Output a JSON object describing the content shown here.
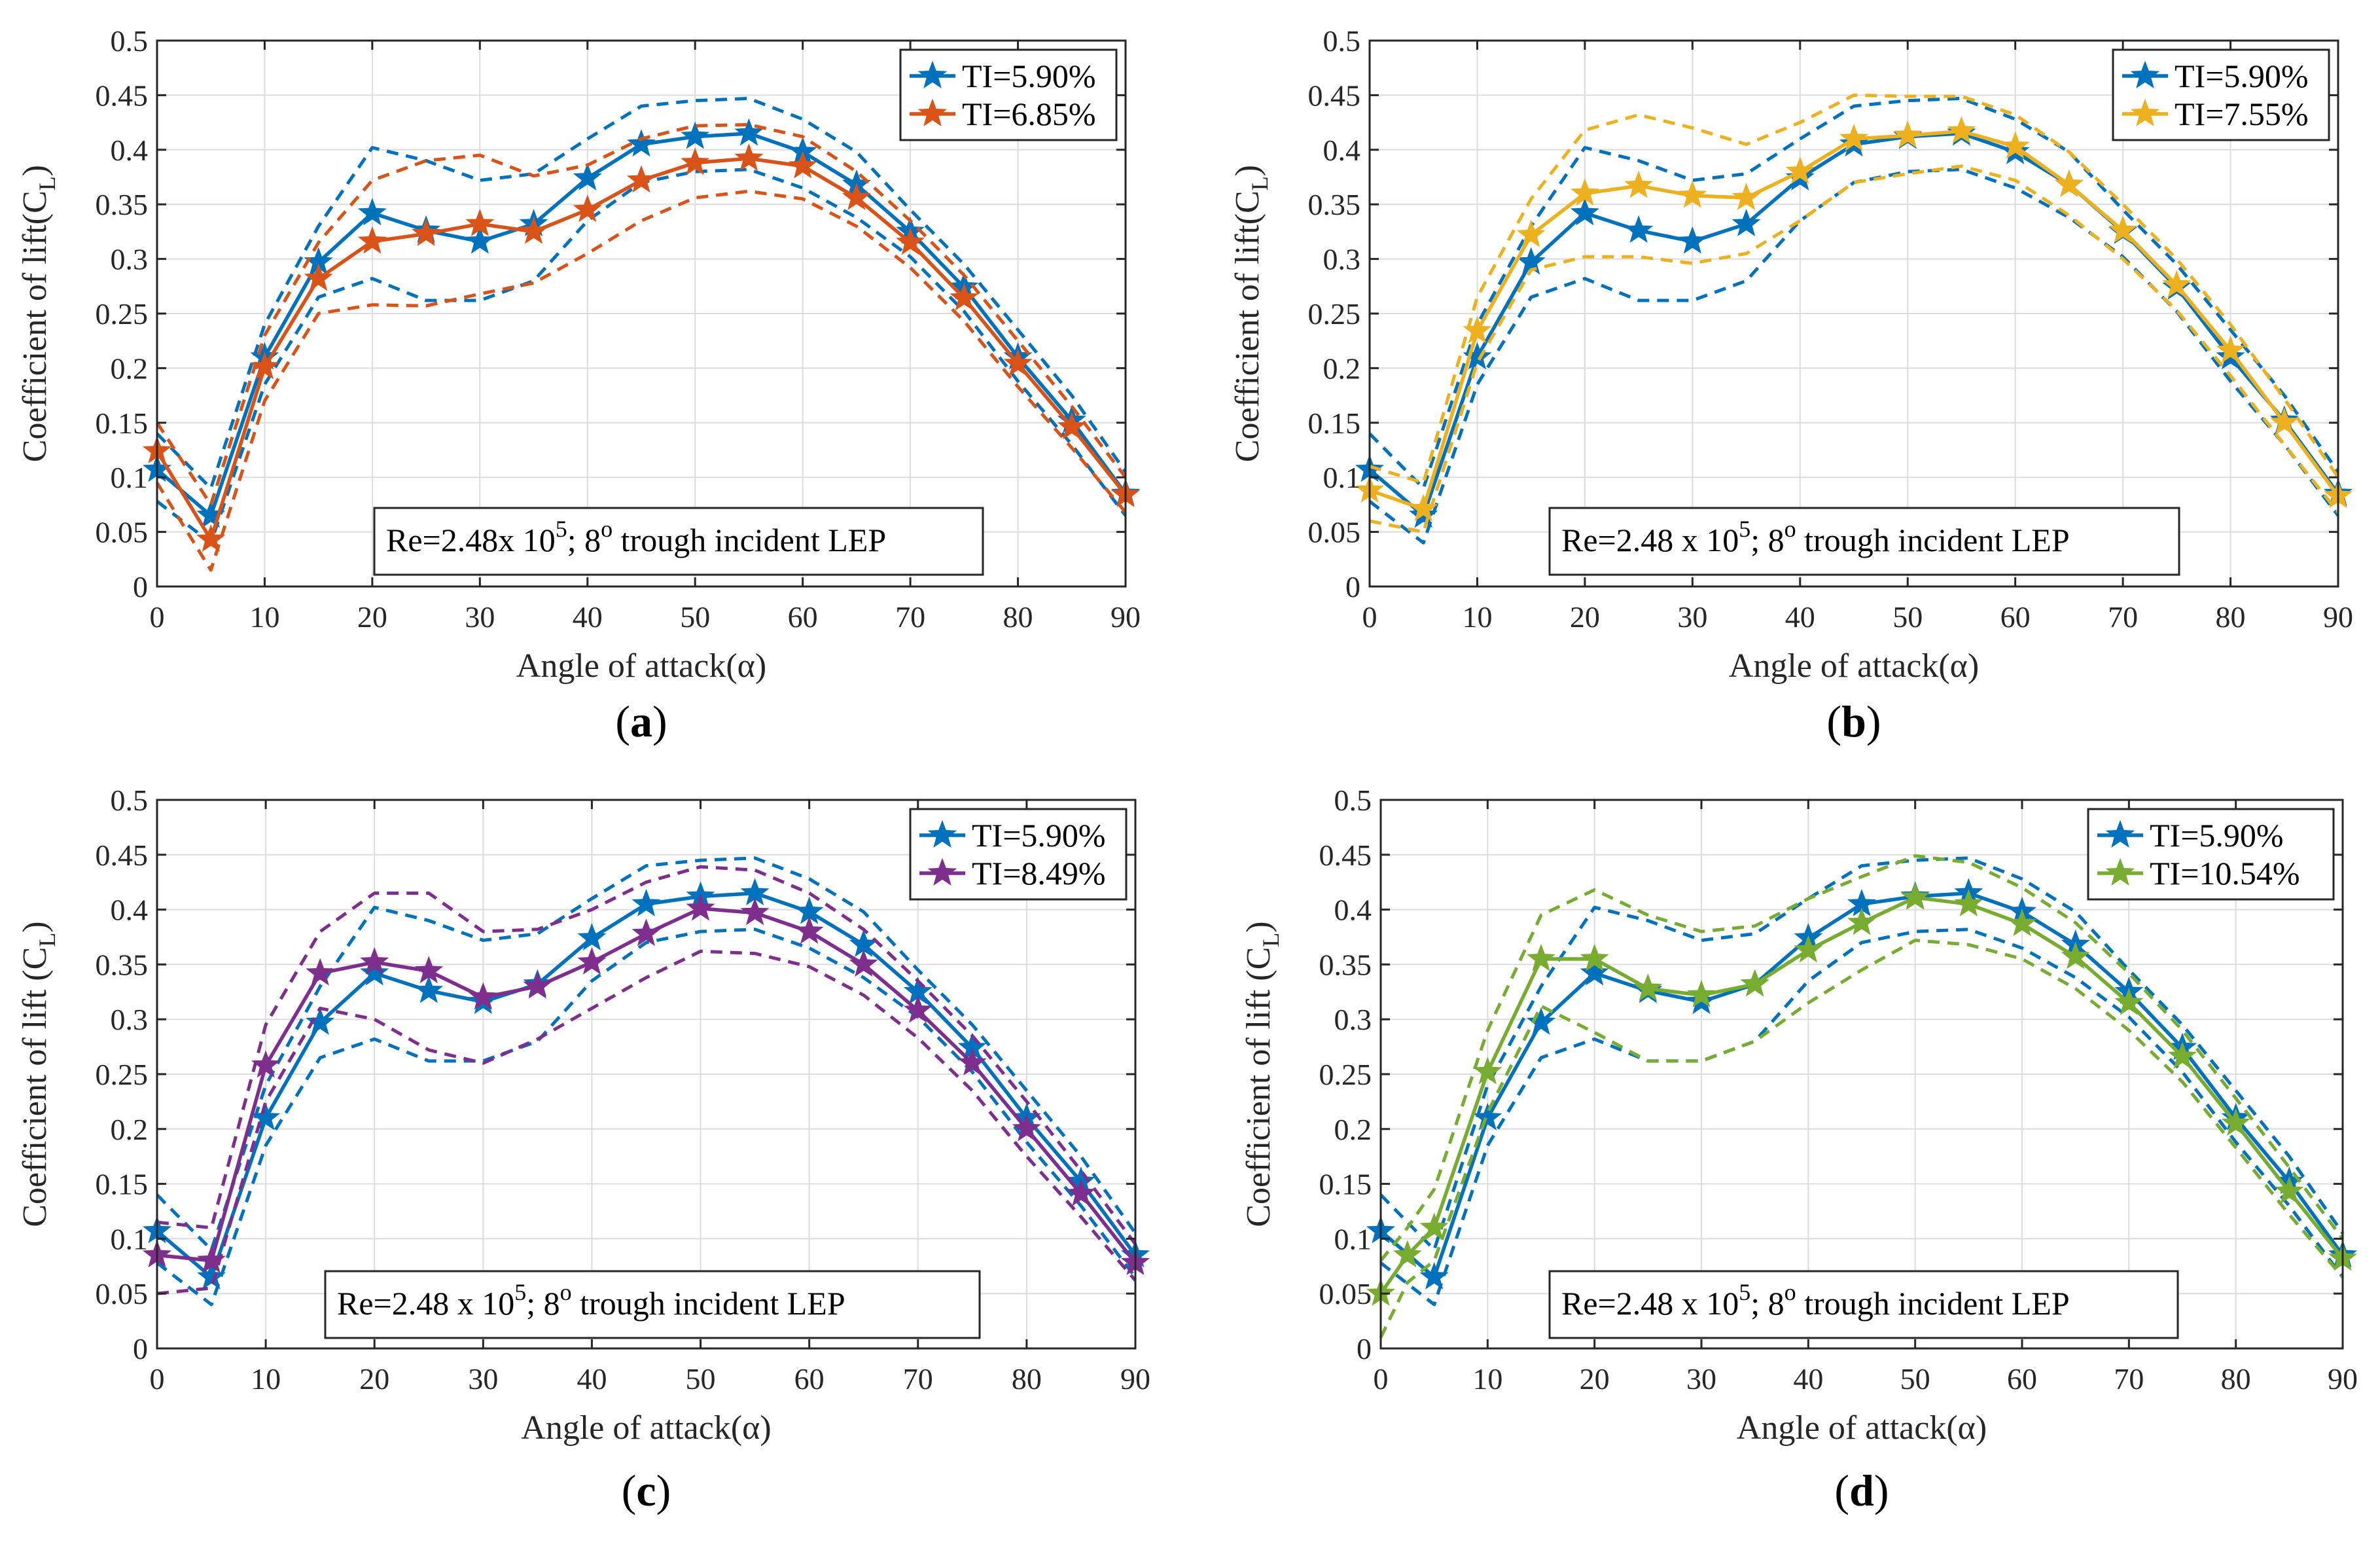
{
  "figure": {
    "x_ticks": [
      "0",
      "10",
      "20",
      "30",
      "40",
      "50",
      "60",
      "70",
      "80",
      "90"
    ],
    "y_ticks": [
      "0",
      "0.05",
      "0.1",
      "0.15",
      "0.2",
      "0.25",
      "0.3",
      "0.35",
      "0.4",
      "0.45",
      "0.5"
    ],
    "colors": {
      "blue": "#0072BD",
      "orange": "#D95319",
      "yellow": "#EDB120",
      "purple": "#7E2F8E",
      "green": "#77AC30"
    }
  },
  "chart_data": [
    {
      "type": "line",
      "panel_label": "(a)",
      "xlabel": "Angle of attack(α)",
      "ylabel": "Coefficient of lift(C",
      "ylabel_sub": "L",
      "ylabel_close": ")",
      "xlim": [
        0,
        90
      ],
      "ylim": [
        0,
        0.5
      ],
      "grid": true,
      "legend_position": "top-right",
      "annotation": {
        "pre": "Re=2.48x 10",
        "sup1": "5",
        "mid": "; 8",
        "sup2": "o",
        "post": " trough incident LEP"
      },
      "series": [
        {
          "name": "TI=5.90%",
          "color": "#0072BD",
          "x": [
            0,
            5,
            10,
            15,
            20,
            25,
            30,
            35,
            40,
            45,
            50,
            55,
            60,
            65,
            70,
            75,
            80,
            85,
            90
          ],
          "y": [
            0.107,
            0.065,
            0.21,
            0.297,
            0.342,
            0.326,
            0.316,
            0.332,
            0.374,
            0.405,
            0.412,
            0.415,
            0.398,
            0.368,
            0.325,
            0.274,
            0.21,
            0.152,
            0.085
          ],
          "upper": [
            0.14,
            0.09,
            0.24,
            0.33,
            0.402,
            0.39,
            0.372,
            0.378,
            0.41,
            0.44,
            0.445,
            0.447,
            0.428,
            0.398,
            0.345,
            0.295,
            0.235,
            0.175,
            0.105
          ],
          "lower": [
            0.078,
            0.04,
            0.185,
            0.265,
            0.282,
            0.262,
            0.262,
            0.28,
            0.335,
            0.37,
            0.38,
            0.382,
            0.365,
            0.338,
            0.302,
            0.252,
            0.188,
            0.13,
            0.065
          ]
        },
        {
          "name": "TI=6.85%",
          "color": "#D95319",
          "x": [
            0,
            5,
            10,
            15,
            20,
            25,
            30,
            35,
            40,
            45,
            50,
            55,
            60,
            65,
            70,
            75,
            80,
            85,
            90
          ],
          "y": [
            0.124,
            0.043,
            0.201,
            0.282,
            0.316,
            0.323,
            0.332,
            0.325,
            0.345,
            0.372,
            0.388,
            0.392,
            0.385,
            0.356,
            0.315,
            0.264,
            0.204,
            0.146,
            0.084
          ],
          "upper": [
            0.15,
            0.075,
            0.23,
            0.315,
            0.372,
            0.39,
            0.395,
            0.376,
            0.386,
            0.41,
            0.422,
            0.423,
            0.412,
            0.38,
            0.335,
            0.285,
            0.225,
            0.165,
            0.1
          ],
          "lower": [
            0.095,
            0.015,
            0.17,
            0.25,
            0.258,
            0.257,
            0.268,
            0.278,
            0.305,
            0.335,
            0.356,
            0.362,
            0.355,
            0.33,
            0.292,
            0.243,
            0.183,
            0.127,
            0.068
          ]
        }
      ]
    },
    {
      "type": "line",
      "panel_label": "(b)",
      "xlabel": "Angle of attack(α)",
      "ylabel": "Coefficient of lift(C",
      "ylabel_sub": "L",
      "ylabel_close": ")",
      "xlim": [
        0,
        90
      ],
      "ylim": [
        0,
        0.5
      ],
      "grid": true,
      "legend_position": "top-right",
      "annotation": {
        "pre": "Re=2.48 x 10",
        "sup1": "5",
        "mid": "; 8",
        "sup2": "o",
        "post": " trough incident LEP"
      },
      "series": [
        {
          "name": "TI=5.90%",
          "color": "#0072BD",
          "x": [
            0,
            5,
            10,
            15,
            20,
            25,
            30,
            35,
            40,
            45,
            50,
            55,
            60,
            65,
            70,
            75,
            80,
            85,
            90
          ],
          "y": [
            0.107,
            0.065,
            0.21,
            0.297,
            0.342,
            0.326,
            0.316,
            0.332,
            0.374,
            0.405,
            0.412,
            0.415,
            0.398,
            0.368,
            0.325,
            0.274,
            0.21,
            0.152,
            0.085
          ],
          "upper": [
            0.14,
            0.09,
            0.24,
            0.33,
            0.402,
            0.39,
            0.372,
            0.378,
            0.41,
            0.44,
            0.445,
            0.447,
            0.428,
            0.398,
            0.345,
            0.295,
            0.235,
            0.175,
            0.105
          ],
          "lower": [
            0.078,
            0.04,
            0.185,
            0.265,
            0.282,
            0.262,
            0.262,
            0.28,
            0.335,
            0.37,
            0.38,
            0.382,
            0.365,
            0.338,
            0.302,
            0.252,
            0.188,
            0.13,
            0.065
          ]
        },
        {
          "name": "TI=7.55%",
          "color": "#EDB120",
          "x": [
            0,
            5,
            10,
            15,
            20,
            25,
            30,
            35,
            40,
            45,
            50,
            55,
            60,
            65,
            70,
            75,
            80,
            85,
            90
          ],
          "y": [
            0.088,
            0.071,
            0.234,
            0.322,
            0.36,
            0.367,
            0.358,
            0.356,
            0.38,
            0.41,
            0.413,
            0.417,
            0.403,
            0.368,
            0.326,
            0.276,
            0.216,
            0.15,
            0.083
          ],
          "upper": [
            0.11,
            0.095,
            0.265,
            0.355,
            0.418,
            0.432,
            0.42,
            0.405,
            0.425,
            0.45,
            0.449,
            0.449,
            0.432,
            0.398,
            0.35,
            0.3,
            0.24,
            0.172,
            0.1
          ],
          "lower": [
            0.06,
            0.05,
            0.205,
            0.29,
            0.302,
            0.302,
            0.296,
            0.305,
            0.335,
            0.37,
            0.378,
            0.385,
            0.372,
            0.34,
            0.3,
            0.253,
            0.193,
            0.13,
            0.068
          ]
        }
      ]
    },
    {
      "type": "line",
      "panel_label": "(c)",
      "xlabel": "Angle of attack(α)",
      "ylabel": "Coefficient of lift (C",
      "ylabel_sub": "L",
      "ylabel_close": ")",
      "xlim": [
        0,
        90
      ],
      "ylim": [
        0,
        0.5
      ],
      "grid": true,
      "legend_position": "top-right",
      "annotation": {
        "pre": "Re=2.48 x 10",
        "sup1": "5",
        "mid": "; 8",
        "sup2": "o",
        "post": " trough incident LEP"
      },
      "series": [
        {
          "name": "TI=5.90%",
          "color": "#0072BD",
          "x": [
            0,
            5,
            10,
            15,
            20,
            25,
            30,
            35,
            40,
            45,
            50,
            55,
            60,
            65,
            70,
            75,
            80,
            85,
            90
          ],
          "y": [
            0.107,
            0.065,
            0.21,
            0.297,
            0.342,
            0.326,
            0.316,
            0.332,
            0.374,
            0.405,
            0.412,
            0.415,
            0.398,
            0.368,
            0.325,
            0.274,
            0.21,
            0.152,
            0.085
          ],
          "upper": [
            0.14,
            0.09,
            0.24,
            0.33,
            0.402,
            0.39,
            0.372,
            0.378,
            0.41,
            0.44,
            0.445,
            0.447,
            0.428,
            0.398,
            0.345,
            0.295,
            0.235,
            0.175,
            0.105
          ],
          "lower": [
            0.078,
            0.04,
            0.185,
            0.265,
            0.282,
            0.262,
            0.262,
            0.28,
            0.335,
            0.37,
            0.38,
            0.382,
            0.365,
            0.338,
            0.302,
            0.252,
            0.188,
            0.13,
            0.065
          ]
        },
        {
          "name": "TI=8.49%",
          "color": "#7E2F8E",
          "x": [
            0,
            5,
            10,
            15,
            20,
            25,
            30,
            35,
            40,
            45,
            50,
            55,
            60,
            65,
            70,
            75,
            80,
            85,
            90
          ],
          "y": [
            0.085,
            0.08,
            0.258,
            0.342,
            0.352,
            0.344,
            0.32,
            0.33,
            0.352,
            0.378,
            0.401,
            0.397,
            0.38,
            0.35,
            0.308,
            0.26,
            0.2,
            0.141,
            0.078
          ],
          "upper": [
            0.115,
            0.11,
            0.295,
            0.38,
            0.415,
            0.415,
            0.38,
            0.382,
            0.4,
            0.425,
            0.439,
            0.436,
            0.415,
            0.382,
            0.335,
            0.285,
            0.225,
            0.162,
            0.095
          ],
          "lower": [
            0.05,
            0.055,
            0.225,
            0.31,
            0.3,
            0.272,
            0.26,
            0.282,
            0.31,
            0.338,
            0.362,
            0.36,
            0.348,
            0.322,
            0.283,
            0.235,
            0.175,
            0.12,
            0.062
          ]
        }
      ]
    },
    {
      "type": "line",
      "panel_label": "(d)",
      "xlabel": "Angle of attack(α)",
      "ylabel": "Coefficient of lift (C",
      "ylabel_sub": "L",
      "ylabel_close": ")",
      "xlim": [
        0,
        90
      ],
      "ylim": [
        0,
        0.5
      ],
      "grid": true,
      "legend_position": "top-right",
      "annotation": {
        "pre": "Re=2.48 x 10",
        "sup1": "5",
        "mid": "; 8",
        "sup2": "o",
        "post": " trough incident LEP"
      },
      "series": [
        {
          "name": "TI=5.90%",
          "color": "#0072BD",
          "x": [
            0,
            5,
            10,
            15,
            20,
            25,
            30,
            35,
            40,
            45,
            50,
            55,
            60,
            65,
            70,
            75,
            80,
            85,
            90
          ],
          "y": [
            0.107,
            0.065,
            0.21,
            0.297,
            0.342,
            0.326,
            0.316,
            0.332,
            0.374,
            0.405,
            0.412,
            0.415,
            0.398,
            0.368,
            0.325,
            0.274,
            0.21,
            0.152,
            0.085
          ],
          "upper": [
            0.14,
            0.09,
            0.24,
            0.33,
            0.402,
            0.39,
            0.372,
            0.378,
            0.41,
            0.44,
            0.445,
            0.447,
            0.428,
            0.398,
            0.345,
            0.295,
            0.235,
            0.175,
            0.105
          ],
          "lower": [
            0.078,
            0.04,
            0.185,
            0.265,
            0.282,
            0.262,
            0.262,
            0.28,
            0.335,
            0.37,
            0.38,
            0.382,
            0.365,
            0.338,
            0.302,
            0.252,
            0.188,
            0.13,
            0.065
          ]
        },
        {
          "name": "TI=10.54%",
          "color": "#77AC30",
          "x": [
            0,
            2.5,
            5,
            10,
            15,
            20,
            25,
            30,
            35,
            40,
            45,
            50,
            55,
            60,
            65,
            70,
            75,
            80,
            85,
            90
          ],
          "y": [
            0.05,
            0.085,
            0.11,
            0.252,
            0.355,
            0.355,
            0.328,
            0.322,
            0.332,
            0.363,
            0.388,
            0.411,
            0.405,
            0.387,
            0.357,
            0.315,
            0.266,
            0.205,
            0.143,
            0.082
          ],
          "upper": [
            0.08,
            0.11,
            0.145,
            0.29,
            0.395,
            0.418,
            0.395,
            0.38,
            0.385,
            0.41,
            0.43,
            0.449,
            0.443,
            0.42,
            0.388,
            0.342,
            0.29,
            0.228,
            0.165,
            0.1
          ],
          "lower": [
            0.01,
            0.06,
            0.08,
            0.215,
            0.312,
            0.288,
            0.262,
            0.262,
            0.28,
            0.315,
            0.345,
            0.372,
            0.368,
            0.355,
            0.328,
            0.29,
            0.243,
            0.183,
            0.122,
            0.065
          ]
        }
      ]
    }
  ]
}
